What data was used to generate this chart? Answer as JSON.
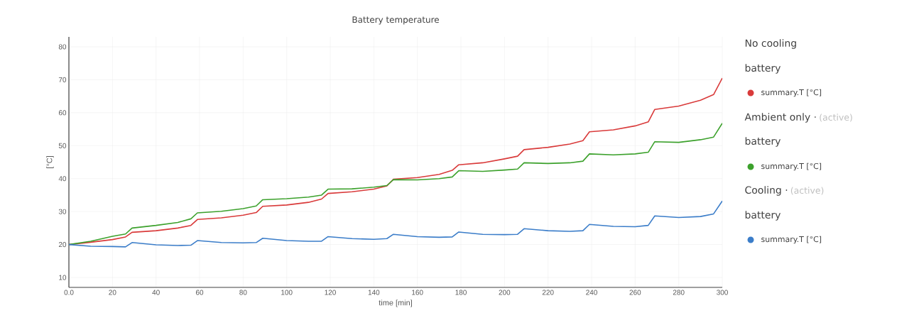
{
  "chart_data": {
    "type": "line",
    "title": "Battery temperature",
    "xlabel": "time [min]",
    "ylabel": "[°C]",
    "xlim": [
      0,
      300
    ],
    "ylim": [
      7,
      83
    ],
    "xticks": [
      {
        "value": 0,
        "label": "0.0"
      },
      20,
      40,
      60,
      80,
      100,
      120,
      140,
      160,
      180,
      200,
      220,
      240,
      260,
      280,
      300
    ],
    "yticks": [
      10,
      20,
      30,
      40,
      50,
      60,
      70,
      80
    ],
    "grid": true,
    "legend": "right",
    "marker": "none",
    "line_style": "solid",
    "annotations": [
      "No cooling",
      "battery",
      "Ambient only ·",
      "(active)",
      "battery",
      "Cooling ·",
      "(active)",
      "battery"
    ],
    "x": [
      0,
      10,
      20,
      26,
      29,
      40,
      50,
      56,
      59,
      70,
      80,
      86,
      89,
      100,
      110,
      116,
      119,
      130,
      140,
      146,
      149,
      160,
      170,
      176,
      179,
      190,
      200,
      206,
      209,
      220,
      230,
      236,
      239,
      250,
      260,
      266,
      269,
      280,
      290,
      296,
      300
    ],
    "series": [
      {
        "name": "summary.T [°C]",
        "color": "#d93a3a",
        "values": [
          20,
          20.7,
          21.5,
          22.3,
          23.7,
          24.2,
          25,
          25.8,
          27.6,
          28.1,
          28.9,
          29.7,
          31.6,
          32,
          32.8,
          33.8,
          35.5,
          36,
          36.8,
          37.8,
          39.8,
          40.3,
          41.3,
          42.5,
          44.2,
          44.8,
          46,
          46.8,
          48.8,
          49.5,
          50.5,
          51.5,
          54.2,
          54.8,
          56,
          57.2,
          61,
          62,
          63.8,
          65.5,
          70.5
        ]
      },
      {
        "name": "summary.T [°C]",
        "color": "#3ca12c",
        "values": [
          20,
          21,
          22.5,
          23.2,
          25,
          25.8,
          26.7,
          27.8,
          29.6,
          30.1,
          30.9,
          31.7,
          33.6,
          33.9,
          34.4,
          35,
          36.8,
          36.9,
          37.4,
          37.9,
          39.7,
          39.6,
          40,
          40.5,
          42.4,
          42.2,
          42.6,
          42.9,
          44.8,
          44.6,
          44.8,
          45.3,
          47.5,
          47.2,
          47.5,
          48,
          51.2,
          51,
          51.8,
          52.6,
          56.8
        ]
      },
      {
        "name": "summary.T [°C]",
        "color": "#3b7dc9",
        "values": [
          20,
          19.5,
          19.4,
          19.3,
          20.6,
          19.9,
          19.7,
          19.8,
          21.2,
          20.6,
          20.5,
          20.6,
          21.9,
          21.2,
          21,
          21,
          22.4,
          21.8,
          21.6,
          21.8,
          23.1,
          22.4,
          22.2,
          22.3,
          23.8,
          23.1,
          23,
          23.1,
          24.8,
          24.2,
          24,
          24.2,
          26.1,
          25.5,
          25.4,
          25.8,
          28.7,
          28.2,
          28.5,
          29.3,
          33.2
        ]
      }
    ]
  }
}
